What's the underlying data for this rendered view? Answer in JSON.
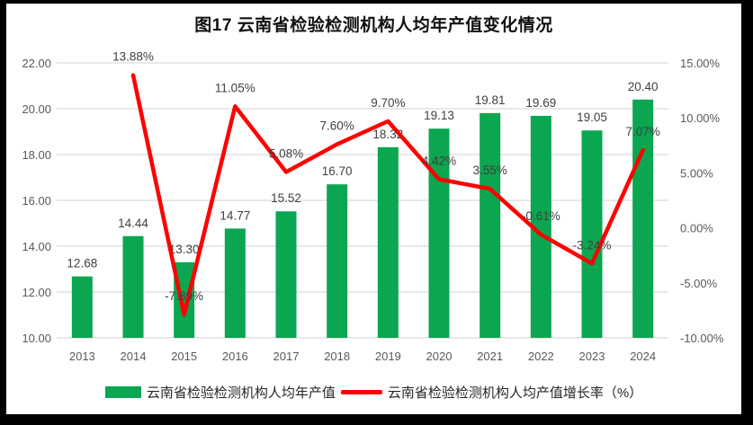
{
  "title": "图17  云南省检验检测机构人均年产值变化情况",
  "colors": {
    "frame": "#000000",
    "chart_background": "#ffffff",
    "grid": "#d9d9d9",
    "bar_green": "#0aa650",
    "line_red": "#fe0000",
    "tick_text": "#595959",
    "data_label_text": "#3f3f3f"
  },
  "chart_data": {
    "type": "bar+line",
    "title": "图17  云南省检验检测机构人均年产值变化情况",
    "categories": [
      "2013",
      "2014",
      "2015",
      "2016",
      "2017",
      "2018",
      "2019",
      "2020",
      "2021",
      "2022",
      "2023",
      "2024"
    ],
    "series": [
      {
        "name": "云南省检验检测机构人均年产值",
        "type": "bar",
        "axis": "left",
        "color": "#0aa650",
        "values": [
          12.68,
          14.44,
          13.3,
          14.77,
          15.52,
          16.7,
          18.32,
          19.13,
          19.81,
          19.69,
          19.05,
          20.4
        ],
        "labels": [
          "12.68",
          "14.44",
          "13.30",
          "14.77",
          "15.52",
          "16.70",
          "18.32",
          "19.13",
          "19.81",
          "19.69",
          "19.05",
          "20.40"
        ]
      },
      {
        "name": "云南省检验检测机构人均产值增长率（%）",
        "type": "line",
        "axis": "right",
        "color": "#fe0000",
        "values": [
          null,
          13.88,
          -7.89,
          11.05,
          5.08,
          7.6,
          9.7,
          4.42,
          3.55,
          -0.61,
          -3.24,
          7.07
        ],
        "labels": [
          null,
          "13.88%",
          "-7.89%",
          "11.05%",
          "5.08%",
          "7.60%",
          "9.70%",
          "4.42%",
          "3.55%",
          "-0.61%",
          "-3.24%",
          "7.07%"
        ]
      }
    ],
    "left_axis": {
      "min": 10,
      "max": 22,
      "step": 2,
      "ticks": [
        "10.00",
        "12.00",
        "14.00",
        "16.00",
        "18.00",
        "20.00",
        "22.00"
      ]
    },
    "right_axis": {
      "min": -10,
      "max": 15,
      "step": 5,
      "ticks": [
        "-10.00%",
        "-5.00%",
        "0.00%",
        "5.00%",
        "10.00%",
        "15.00%"
      ]
    },
    "grid": true,
    "legend_position": "bottom"
  }
}
